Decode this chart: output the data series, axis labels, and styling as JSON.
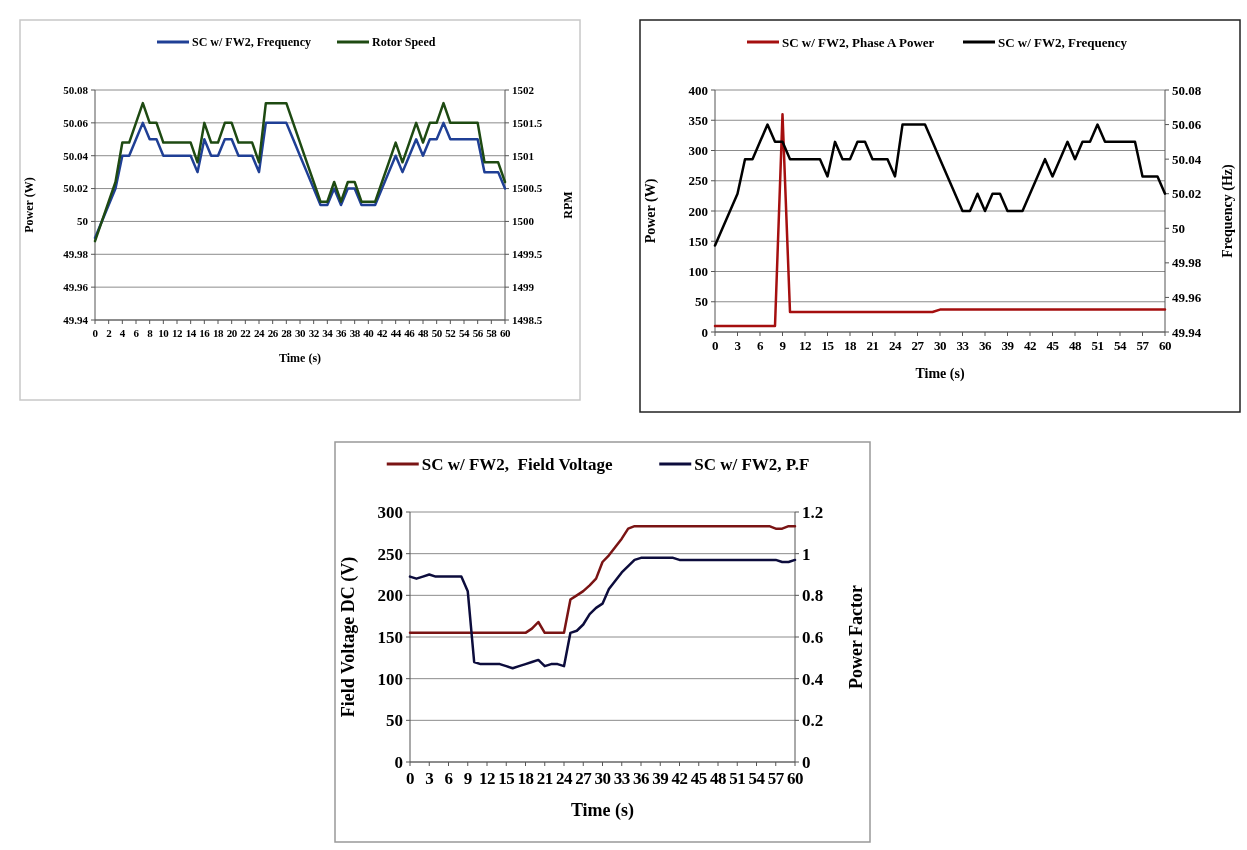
{
  "chart_data": [
    {
      "type": "line",
      "xlabel": "Time (s)",
      "ylabel": "Power (W)",
      "y2label": "RPM",
      "legend": "top",
      "grid": "y",
      "x": [
        0,
        1,
        2,
        3,
        4,
        5,
        6,
        7,
        8,
        9,
        10,
        11,
        12,
        13,
        14,
        15,
        16,
        17,
        18,
        19,
        20,
        21,
        22,
        23,
        24,
        25,
        26,
        27,
        28,
        29,
        30,
        31,
        32,
        33,
        34,
        35,
        36,
        37,
        38,
        39,
        40,
        41,
        42,
        43,
        44,
        45,
        46,
        47,
        48,
        49,
        50,
        51,
        52,
        53,
        54,
        55,
        56,
        57,
        58,
        59,
        60
      ],
      "xlim": [
        0,
        60
      ],
      "xticks": [
        0,
        2,
        4,
        6,
        8,
        10,
        12,
        14,
        16,
        18,
        20,
        22,
        24,
        26,
        28,
        30,
        32,
        34,
        36,
        38,
        40,
        42,
        44,
        46,
        48,
        50,
        52,
        54,
        56,
        58,
        60
      ],
      "ylim": [
        49.94,
        50.08
      ],
      "yticks": [
        49.94,
        49.96,
        49.98,
        50,
        50.02,
        50.04,
        50.06,
        50.08
      ],
      "y2lim": [
        1498.5,
        1502
      ],
      "y2ticks": [
        1498.5,
        1499,
        1499.5,
        1500,
        1500.5,
        1501,
        1501.5,
        1502
      ],
      "series": [
        {
          "name": "SC w/ FW2, Frequency",
          "color": "#1f3f95",
          "values": [
            49.99,
            50.0,
            50.01,
            50.02,
            50.04,
            50.04,
            50.05,
            50.06,
            50.05,
            50.05,
            50.04,
            50.04,
            50.04,
            50.04,
            50.04,
            50.03,
            50.05,
            50.04,
            50.04,
            50.05,
            50.05,
            50.04,
            50.04,
            50.04,
            50.03,
            50.06,
            50.06,
            50.06,
            50.06,
            50.05,
            50.04,
            50.03,
            50.02,
            50.01,
            50.01,
            50.02,
            50.01,
            50.02,
            50.02,
            50.01,
            50.01,
            50.01,
            50.02,
            50.03,
            50.04,
            50.03,
            50.04,
            50.05,
            50.04,
            50.05,
            50.05,
            50.06,
            50.05,
            50.05,
            50.05,
            50.05,
            50.05,
            50.03,
            50.03,
            50.03,
            50.02
          ]
        },
        {
          "name": "Rotor Speed",
          "color": "#1e4a12",
          "axis": "y2",
          "values": [
            1499.7,
            1500.0,
            1500.3,
            1500.6,
            1501.2,
            1501.2,
            1501.5,
            1501.8,
            1501.5,
            1501.5,
            1501.2,
            1501.2,
            1501.2,
            1501.2,
            1501.2,
            1500.9,
            1501.5,
            1501.2,
            1501.2,
            1501.5,
            1501.5,
            1501.2,
            1501.2,
            1501.2,
            1500.9,
            1501.8,
            1501.8,
            1501.8,
            1501.8,
            1501.5,
            1501.2,
            1500.9,
            1500.6,
            1500.3,
            1500.3,
            1500.6,
            1500.3,
            1500.6,
            1500.6,
            1500.3,
            1500.3,
            1500.3,
            1500.6,
            1500.9,
            1501.2,
            1500.9,
            1501.2,
            1501.5,
            1501.2,
            1501.5,
            1501.5,
            1501.8,
            1501.5,
            1501.5,
            1501.5,
            1501.5,
            1501.5,
            1500.9,
            1500.9,
            1500.9,
            1500.6
          ]
        }
      ]
    },
    {
      "type": "line",
      "xlabel": "Time (s)",
      "ylabel": "Power (W)",
      "y2label": "Frequency (Hz)",
      "legend": "top",
      "grid": "y",
      "x": [
        0,
        1,
        2,
        3,
        4,
        5,
        6,
        7,
        8,
        9,
        10,
        11,
        12,
        13,
        14,
        15,
        16,
        17,
        18,
        19,
        20,
        21,
        22,
        23,
        24,
        25,
        26,
        27,
        28,
        29,
        30,
        31,
        32,
        33,
        34,
        35,
        36,
        37,
        38,
        39,
        40,
        41,
        42,
        43,
        44,
        45,
        46,
        47,
        48,
        49,
        50,
        51,
        52,
        53,
        54,
        55,
        56,
        57,
        58,
        59,
        60
      ],
      "xlim": [
        0,
        60
      ],
      "xticks": [
        0,
        3,
        6,
        9,
        12,
        15,
        18,
        21,
        24,
        27,
        30,
        33,
        36,
        39,
        42,
        45,
        48,
        51,
        54,
        57,
        60
      ],
      "ylim": [
        0,
        400
      ],
      "yticks": [
        0,
        50,
        100,
        150,
        200,
        250,
        300,
        350,
        400
      ],
      "y2lim": [
        49.94,
        50.08
      ],
      "y2ticks": [
        49.94,
        49.96,
        49.98,
        50,
        50.02,
        50.04,
        50.06,
        50.08
      ],
      "series": [
        {
          "name": "SC w/ FW2, Phase A Power",
          "color": "#a50f0f",
          "values": [
            10,
            10,
            10,
            10,
            10,
            10,
            10,
            10,
            10,
            360,
            33,
            33,
            33,
            33,
            33,
            33,
            33,
            33,
            33,
            33,
            33,
            33,
            33,
            33,
            33,
            33,
            33,
            33,
            33,
            33,
            37,
            37,
            37,
            37,
            37,
            37,
            37,
            37,
            37,
            37,
            37,
            37,
            37,
            37,
            37,
            37,
            37,
            37,
            37,
            37,
            37,
            37,
            37,
            37,
            37,
            37,
            37,
            37,
            37,
            37,
            37
          ]
        },
        {
          "name": "SC w/ FW2, Frequency",
          "color": "#000000",
          "axis": "y2",
          "values": [
            49.99,
            50.0,
            50.01,
            50.02,
            50.04,
            50.04,
            50.05,
            50.06,
            50.05,
            50.05,
            50.04,
            50.04,
            50.04,
            50.04,
            50.04,
            50.03,
            50.05,
            50.04,
            50.04,
            50.05,
            50.05,
            50.04,
            50.04,
            50.04,
            50.03,
            50.06,
            50.06,
            50.06,
            50.06,
            50.05,
            50.04,
            50.03,
            50.02,
            50.01,
            50.01,
            50.02,
            50.01,
            50.02,
            50.02,
            50.01,
            50.01,
            50.01,
            50.02,
            50.03,
            50.04,
            50.03,
            50.04,
            50.05,
            50.04,
            50.05,
            50.05,
            50.06,
            50.05,
            50.05,
            50.05,
            50.05,
            50.05,
            50.03,
            50.03,
            50.03,
            50.02
          ]
        }
      ]
    },
    {
      "type": "line",
      "xlabel": "Time (s)",
      "ylabel": "Field Voltage DC (V)",
      "y2label": "Power Factor",
      "legend": "top",
      "grid": "y",
      "x": [
        0,
        1,
        2,
        3,
        4,
        5,
        6,
        7,
        8,
        9,
        10,
        11,
        12,
        13,
        14,
        15,
        16,
        17,
        18,
        19,
        20,
        21,
        22,
        23,
        24,
        25,
        26,
        27,
        28,
        29,
        30,
        31,
        32,
        33,
        34,
        35,
        36,
        37,
        38,
        39,
        40,
        41,
        42,
        43,
        44,
        45,
        46,
        47,
        48,
        49,
        50,
        51,
        52,
        53,
        54,
        55,
        56,
        57,
        58,
        59,
        60
      ],
      "xlim": [
        0,
        60
      ],
      "xticks": [
        0,
        3,
        6,
        9,
        12,
        15,
        18,
        21,
        24,
        27,
        30,
        33,
        36,
        39,
        42,
        45,
        48,
        51,
        54,
        57,
        60
      ],
      "ylim": [
        0,
        300
      ],
      "yticks": [
        0,
        50,
        100,
        150,
        200,
        250,
        300
      ],
      "y2lim": [
        0,
        1.2
      ],
      "y2ticks": [
        0,
        0.2,
        0.4,
        0.6,
        0.8,
        1,
        1.2
      ],
      "series": [
        {
          "name": "SC w/ FW2,  Field Voltage",
          "color": "#7a1414",
          "values": [
            155,
            155,
            155,
            155,
            155,
            155,
            155,
            155,
            155,
            155,
            155,
            155,
            155,
            155,
            155,
            155,
            155,
            155,
            155,
            160,
            168,
            155,
            155,
            155,
            155,
            195,
            200,
            205,
            212,
            220,
            240,
            248,
            258,
            268,
            280,
            283,
            283,
            283,
            283,
            283,
            283,
            283,
            283,
            283,
            283,
            283,
            283,
            283,
            283,
            283,
            283,
            283,
            283,
            283,
            283,
            283,
            283,
            280,
            280,
            283,
            283
          ]
        },
        {
          "name": "SC w/ FW2, P.F",
          "color": "#0c0c3c",
          "axis": "y2",
          "values": [
            0.89,
            0.88,
            0.89,
            0.9,
            0.89,
            0.89,
            0.89,
            0.89,
            0.89,
            0.82,
            0.48,
            0.47,
            0.47,
            0.47,
            0.47,
            0.46,
            0.45,
            0.46,
            0.47,
            0.48,
            0.49,
            0.46,
            0.47,
            0.47,
            0.46,
            0.62,
            0.63,
            0.66,
            0.71,
            0.74,
            0.76,
            0.83,
            0.87,
            0.91,
            0.94,
            0.97,
            0.98,
            0.98,
            0.98,
            0.98,
            0.98,
            0.98,
            0.97,
            0.97,
            0.97,
            0.97,
            0.97,
            0.97,
            0.97,
            0.97,
            0.97,
            0.97,
            0.97,
            0.97,
            0.97,
            0.97,
            0.97,
            0.97,
            0.96,
            0.96,
            0.97
          ]
        }
      ]
    }
  ]
}
